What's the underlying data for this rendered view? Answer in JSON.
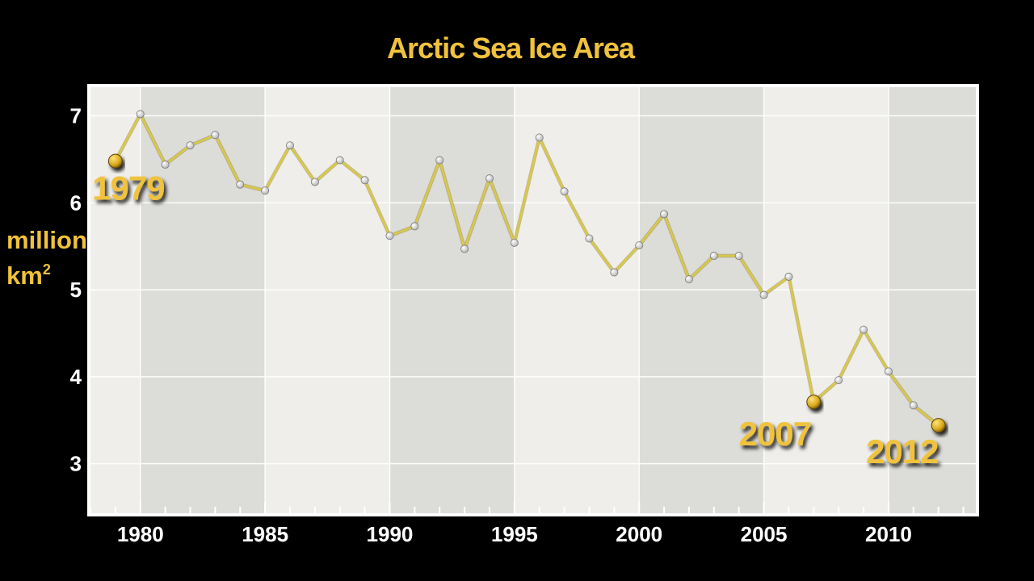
{
  "colors": {
    "background": "#000000",
    "plot_light": "#efeeea",
    "plot_band": "#dcdcd8",
    "accent": "#f0c23c",
    "line": "#d9c84a",
    "point_fill": "#e6e6e6",
    "highlight_point": "#d9a81c",
    "tick_text": "#ffffff"
  },
  "chart_data": {
    "type": "line",
    "title": "Arctic Sea Ice Area",
    "ylabel_line1": "million",
    "ylabel_line2": "km",
    "ylabel_superscript": "2",
    "xlabel": "",
    "x_ticks": [
      1980,
      1985,
      1990,
      1995,
      2000,
      2005,
      2010
    ],
    "y_ticks": [
      3,
      4,
      5,
      6,
      7
    ],
    "xlim": [
      1978,
      2013.5
    ],
    "ylim": [
      2.43,
      7.33
    ],
    "grid": true,
    "alternating_bands_every_years": 5,
    "series": [
      {
        "x": [
          1979,
          1980,
          1981,
          1982,
          1983,
          1984,
          1985,
          1986,
          1987,
          1988,
          1989,
          1990,
          1991,
          1992,
          1993,
          1994,
          1995,
          1996,
          1997,
          1998,
          1999,
          2000,
          2001,
          2002,
          2003,
          2004,
          2005,
          2006,
          2007,
          2008,
          2009,
          2010,
          2011,
          2012
        ],
        "values": [
          6.48,
          7.02,
          6.44,
          6.66,
          6.78,
          6.21,
          6.14,
          6.66,
          6.24,
          6.49,
          6.26,
          5.62,
          5.73,
          6.49,
          5.47,
          6.28,
          5.54,
          6.75,
          6.13,
          5.59,
          5.2,
          5.51,
          5.87,
          5.12,
          5.39,
          5.39,
          4.94,
          5.15,
          3.71,
          3.96,
          4.54,
          4.06,
          3.67,
          3.44
        ]
      }
    ],
    "annotations": [
      {
        "label": "1979",
        "x": 1979,
        "y": 6.48
      },
      {
        "label": "2007",
        "x": 2007,
        "y": 3.71
      },
      {
        "label": "2012",
        "x": 2012,
        "y": 3.44
      }
    ]
  }
}
